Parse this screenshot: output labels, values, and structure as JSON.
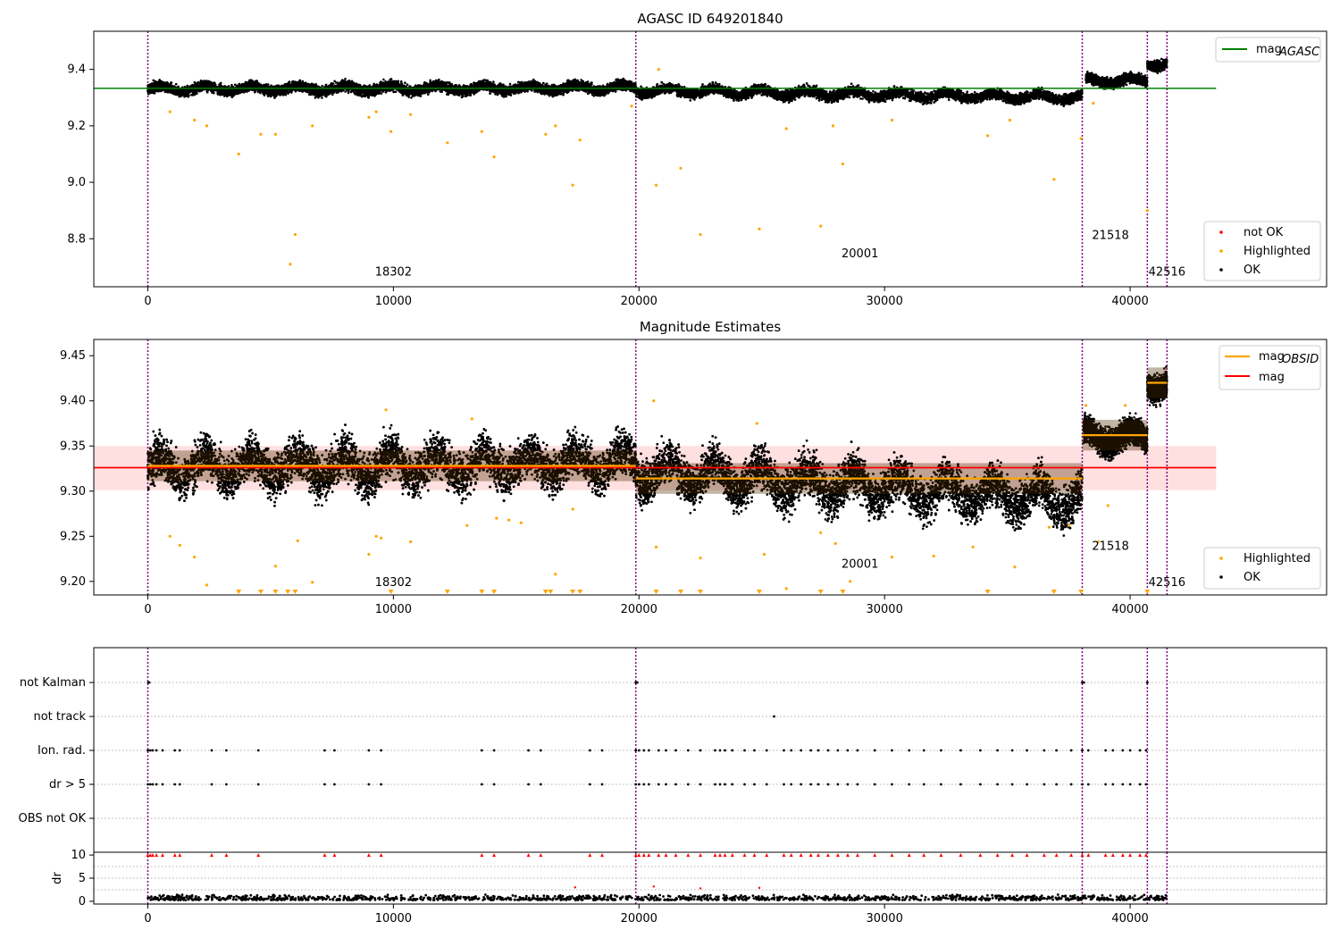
{
  "chart_data": [
    {
      "type": "scatter",
      "title": "AGASC ID 649201840",
      "xlim": [
        -2200,
        48000
      ],
      "ylim": [
        8.63,
        9.535
      ],
      "x_ticks": [
        0,
        10000,
        20000,
        30000,
        40000
      ],
      "x_tick_labels": [
        "0",
        "10000",
        "20000",
        "30000",
        "40000"
      ],
      "y_ticks": [
        8.8,
        9.0,
        9.2,
        9.4
      ],
      "y_tick_labels": [
        "8.8",
        "9.0",
        "9.2",
        "9.4"
      ],
      "obsid_boundaries": [
        0,
        19870,
        38050,
        40700,
        41500
      ],
      "obsid_labels": [
        {
          "x": 10000,
          "y": 8.67,
          "text": "18302"
        },
        {
          "x": 29000,
          "y": 8.735,
          "text": "20001"
        },
        {
          "x": 39200,
          "y": 8.8,
          "text": "21518"
        },
        {
          "x": 41500,
          "y": 8.67,
          "text": "42516"
        }
      ],
      "reference_line": {
        "label": "mag",
        "label_sub": "AGASC",
        "y": 9.333,
        "x_range": [
          -2200,
          43500
        ],
        "color": "#008000"
      },
      "ok_segments": [
        {
          "x_range": [
            0,
            19870
          ],
          "y_start": 9.33,
          "y_end": 9.335,
          "spread": 0.03
        },
        {
          "x_range": [
            19870,
            38050
          ],
          "y_start": 9.325,
          "y_end": 9.3,
          "spread": 0.03
        },
        {
          "x_range": [
            38200,
            40700
          ],
          "y_start": 9.36,
          "y_end": 9.36,
          "spread": 0.03
        },
        {
          "x_range": [
            40700,
            41500
          ],
          "y_start": 9.42,
          "y_end": 9.42,
          "spread": 0.03
        }
      ],
      "highlighted_points": [
        [
          3700,
          9.1
        ],
        [
          4600,
          9.17
        ],
        [
          5200,
          9.17
        ],
        [
          5800,
          8.71
        ],
        [
          6000,
          8.815
        ],
        [
          6700,
          9.2
        ],
        [
          2400,
          9.2
        ],
        [
          1900,
          9.22
        ],
        [
          900,
          9.25
        ],
        [
          9000,
          9.23
        ],
        [
          9300,
          9.25
        ],
        [
          9900,
          9.18
        ],
        [
          10700,
          9.24
        ],
        [
          12200,
          9.14
        ],
        [
          13600,
          9.18
        ],
        [
          14100,
          9.09
        ],
        [
          16200,
          9.17
        ],
        [
          16600,
          9.2
        ],
        [
          17300,
          8.99
        ],
        [
          17600,
          9.15
        ],
        [
          20700,
          8.99
        ],
        [
          21700,
          9.05
        ],
        [
          22500,
          8.815
        ],
        [
          24900,
          8.835
        ],
        [
          26000,
          9.19
        ],
        [
          27400,
          8.845
        ],
        [
          28300,
          9.065
        ],
        [
          27900,
          9.2
        ],
        [
          30300,
          9.22
        ],
        [
          34200,
          9.165
        ],
        [
          35100,
          9.22
        ],
        [
          36900,
          9.01
        ],
        [
          38000,
          9.155
        ],
        [
          38500,
          9.28
        ],
        [
          40700,
          8.9
        ],
        [
          20800,
          9.4
        ],
        [
          19700,
          9.27
        ]
      ],
      "not_ok_points": [],
      "legend": {
        "placement": "lower-right",
        "entries": [
          "not OK",
          "Highlighted",
          "OK"
        ]
      },
      "reference_legend": {
        "placement": "upper-right"
      }
    },
    {
      "type": "scatter",
      "title": "Magnitude Estimates",
      "xlim": [
        -2200,
        48000
      ],
      "ylim": [
        9.185,
        9.468
      ],
      "x_ticks": [
        0,
        10000,
        20000,
        30000,
        40000
      ],
      "x_tick_labels": [
        "0",
        "10000",
        "20000",
        "30000",
        "40000"
      ],
      "y_ticks": [
        9.2,
        9.25,
        9.3,
        9.35,
        9.4,
        9.45
      ],
      "y_tick_labels": [
        "9.20",
        "9.25",
        "9.30",
        "9.35",
        "9.40",
        "9.45"
      ],
      "obsid_boundaries": [
        0,
        19870,
        38050,
        40700,
        41500
      ],
      "obsid_labels": [
        {
          "x": 10000,
          "y": 9.195,
          "text": "18302"
        },
        {
          "x": 29000,
          "y": 9.215,
          "text": "20001"
        },
        {
          "x": 39200,
          "y": 9.235,
          "text": "21518"
        },
        {
          "x": 41500,
          "y": 9.195,
          "text": "42516"
        }
      ],
      "mean_band": {
        "y_range": [
          9.301,
          9.35
        ],
        "x_range": [
          -2200,
          43500
        ],
        "color": "#ff0000"
      },
      "mag_line": {
        "label": "mag",
        "y": 9.326,
        "x_range": [
          -2200,
          43500
        ],
        "color": "#ff0000"
      },
      "obsid_mags": {
        "label": "mag",
        "label_sub": "OBSID",
        "color": "#ffa500",
        "segments": [
          {
            "x_range": [
              0,
              19870
            ],
            "y": 9.328
          },
          {
            "x_range": [
              19870,
              38050
            ],
            "y": 9.314
          },
          {
            "x_range": [
              38050,
              40700
            ],
            "y": 9.362
          },
          {
            "x_range": [
              40700,
              41500
            ],
            "y": 9.42
          }
        ]
      },
      "ok_segments": [
        {
          "x_range": [
            0,
            19870
          ],
          "y_start": 9.325,
          "y_end": 9.332,
          "spread": 0.04
        },
        {
          "x_range": [
            19870,
            38050
          ],
          "y_start": 9.322,
          "y_end": 9.29,
          "spread": 0.04
        },
        {
          "x_range": [
            38100,
            40700
          ],
          "y_start": 9.36,
          "y_end": 9.36,
          "spread": 0.025
        },
        {
          "x_range": [
            40700,
            41500
          ],
          "y_start": 9.42,
          "y_end": 9.42,
          "spread": 0.025
        }
      ],
      "highlighted_points": [
        [
          900,
          9.25
        ],
        [
          1300,
          9.24
        ],
        [
          1900,
          9.227
        ],
        [
          2400,
          9.196
        ],
        [
          5200,
          9.217
        ],
        [
          6100,
          9.245
        ],
        [
          6700,
          9.199
        ],
        [
          9000,
          9.23
        ],
        [
          9300,
          9.25
        ],
        [
          9500,
          9.248
        ],
        [
          10700,
          9.244
        ],
        [
          13000,
          9.262
        ],
        [
          14200,
          9.27
        ],
        [
          14700,
          9.268
        ],
        [
          15200,
          9.265
        ],
        [
          16600,
          9.208
        ],
        [
          17300,
          9.28
        ],
        [
          20700,
          9.238
        ],
        [
          22500,
          9.226
        ],
        [
          25100,
          9.23
        ],
        [
          26000,
          9.192
        ],
        [
          27400,
          9.254
        ],
        [
          28000,
          9.242
        ],
        [
          28600,
          9.2
        ],
        [
          30300,
          9.227
        ],
        [
          32000,
          9.228
        ],
        [
          33600,
          9.238
        ],
        [
          35300,
          9.216
        ],
        [
          36700,
          9.26
        ],
        [
          37500,
          9.262
        ],
        [
          38700,
          9.244
        ],
        [
          39100,
          9.284
        ],
        [
          20600,
          9.4
        ],
        [
          24800,
          9.375
        ],
        [
          9700,
          9.39
        ],
        [
          13200,
          9.38
        ],
        [
          38200,
          9.395
        ],
        [
          39800,
          9.395
        ]
      ],
      "clipped_points_x": [
        3700,
        4600,
        5200,
        5700,
        6000,
        9900,
        12200,
        13600,
        14100,
        16200,
        16400,
        17300,
        17600,
        20700,
        21700,
        22500,
        24900,
        27400,
        28300,
        34200,
        36900,
        38000,
        40700
      ],
      "legend": {
        "placement": "lower-right",
        "entries": [
          "Highlighted",
          "OK"
        ]
      },
      "estimate_legend": {
        "placement": "upper-right"
      }
    },
    {
      "type": "scatter",
      "xlim": [
        -2200,
        48000
      ],
      "y_categories": [
        "not Kalman",
        "not track",
        "Ion. rad.",
        "dr > 5",
        "OBS not OK"
      ],
      "x_ticks": [
        0,
        10000,
        20000,
        30000,
        40000
      ],
      "x_tick_labels": [
        "0",
        "10000",
        "20000",
        "30000",
        "40000"
      ],
      "obsid_boundaries": [
        0,
        19870,
        38050,
        40700,
        41500
      ],
      "flag_points": {
        "not Kalman": [
          20,
          60,
          19870,
          19930,
          38050,
          38120,
          40700
        ],
        "not track": [
          25500
        ],
        "Ion. rad.": [
          0,
          100,
          200,
          350,
          600,
          1100,
          1300,
          2600,
          3200,
          4500,
          7200,
          7600,
          9000,
          9500,
          13600,
          14100,
          15500,
          16000,
          18000,
          18500,
          19870,
          20000,
          20200,
          20400,
          20800,
          21100,
          21500,
          22000,
          22500,
          23100,
          23300,
          23500,
          23800,
          24300,
          24700,
          25200,
          25900,
          26200,
          26600,
          27000,
          27300,
          27700,
          28100,
          28500,
          28900,
          29600,
          30300,
          31000,
          31600,
          32300,
          33100,
          33900,
          34600,
          35200,
          35800,
          36500,
          37000,
          37600,
          38050,
          38300,
          39000,
          39300,
          39700,
          40000,
          40400,
          40650
        ],
        "dr > 5": [
          0,
          100,
          200,
          350,
          600,
          1100,
          1300,
          2600,
          3200,
          4500,
          7200,
          7600,
          9000,
          9500,
          13600,
          14100,
          15500,
          16000,
          18000,
          18500,
          19870,
          20000,
          20200,
          20400,
          20800,
          21100,
          21500,
          22000,
          22500,
          23100,
          23300,
          23500,
          23800,
          24300,
          24700,
          25200,
          25900,
          26200,
          26600,
          27000,
          27300,
          27700,
          28100,
          28500,
          28900,
          29600,
          30300,
          31000,
          31600,
          32300,
          33100,
          33900,
          34600,
          35200,
          35800,
          36500,
          37000,
          37600,
          38050,
          38300,
          39000,
          39300,
          39700,
          40000,
          40400,
          40650
        ],
        "OBS not OK": []
      }
    },
    {
      "type": "scatter",
      "ylabel": "dr",
      "xlim": [
        -2200,
        48000
      ],
      "ylim": [
        -0.6,
        10.6
      ],
      "y_ticks": [
        0,
        5,
        10
      ],
      "y_tick_labels": [
        "0",
        "5",
        "10"
      ],
      "x_ticks": [
        0,
        10000,
        20000,
        30000,
        40000
      ],
      "x_tick_labels": [
        "0",
        "10000",
        "20000",
        "30000",
        "40000"
      ],
      "obsid_boundaries": [
        0,
        19870,
        38050,
        40700,
        41500
      ],
      "dr_ok_range": [
        0,
        41500
      ],
      "dr_outliers": [
        [
          17400,
          3.0
        ],
        [
          20600,
          3.2
        ],
        [
          22500,
          2.8
        ],
        [
          24900,
          2.9
        ]
      ],
      "dr_capped_x": [
        0,
        100,
        200,
        350,
        600,
        1100,
        1300,
        2600,
        3200,
        4500,
        7200,
        7600,
        9000,
        9500,
        13600,
        14100,
        15500,
        16000,
        18000,
        18500,
        19870,
        20000,
        20200,
        20400,
        20800,
        21100,
        21500,
        22000,
        22500,
        23100,
        23300,
        23500,
        23800,
        24300,
        24700,
        25200,
        25900,
        26200,
        26600,
        27000,
        27300,
        27700,
        28100,
        28500,
        28900,
        29600,
        30300,
        31000,
        31600,
        32300,
        33100,
        33900,
        34600,
        35200,
        35800,
        36500,
        37000,
        37600,
        38050,
        38300,
        39000,
        39300,
        39700,
        40000,
        40400,
        40650
      ],
      "dr_cap_value": 10
    }
  ]
}
